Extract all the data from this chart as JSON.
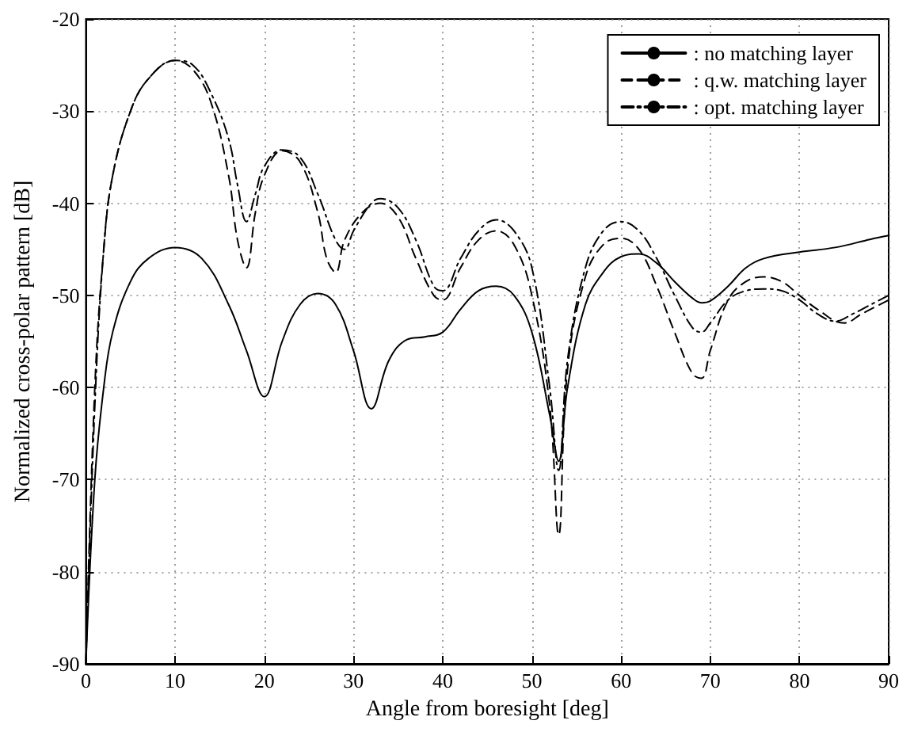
{
  "chart_data": {
    "type": "line",
    "xlabel": "Angle from boresight [deg]",
    "ylabel": "Normalized cross-polar pattern [dB]",
    "xlim": [
      0,
      90
    ],
    "xticks": [
      0,
      10,
      20,
      30,
      40,
      50,
      60,
      70,
      80,
      90
    ],
    "ylim": [
      -90,
      -20
    ],
    "yticks": [
      -90,
      -80,
      -70,
      -60,
      -50,
      -40,
      -30,
      -20
    ],
    "grid": true,
    "legend": "top right",
    "marker": "none",
    "series": [
      {
        "name": ": no matching layer",
        "color": "#000000",
        "line_style": "solid",
        "x": [
          0,
          1,
          2,
          3,
          5,
          7,
          10,
          13,
          16,
          18,
          20,
          22,
          24,
          26,
          28,
          30,
          32,
          34,
          36,
          38,
          40,
          42,
          44,
          46,
          48,
          50,
          52,
          53,
          54,
          56,
          58,
          60,
          62,
          64,
          66,
          68,
          69,
          70,
          72,
          74,
          76,
          80,
          84,
          88,
          90
        ],
        "values": [
          -90,
          -70,
          -60,
          -54,
          -48.5,
          -46,
          -44.8,
          -46,
          -51,
          -56,
          -61,
          -55,
          -51,
          -49.8,
          -51,
          -56,
          -62.3,
          -57,
          -54.8,
          -54.5,
          -54,
          -51.5,
          -49.5,
          -49,
          -50,
          -54,
          -63,
          -68,
          -60,
          -51,
          -47.5,
          -45.8,
          -45.5,
          -46.5,
          -48.5,
          -50.3,
          -50.8,
          -50.6,
          -49,
          -47,
          -46,
          -45.3,
          -44.8,
          -43.9,
          -43.5
        ]
      },
      {
        "name": ": q.w. matching layer",
        "color": "#000000",
        "line_style": "dashed",
        "x": [
          0,
          1,
          2,
          3,
          5,
          7,
          10,
          12,
          14,
          16,
          17,
          18,
          19,
          20,
          22,
          24,
          26,
          27,
          28,
          29,
          31,
          33,
          35,
          37,
          39,
          40,
          42,
          44,
          46,
          48,
          50,
          52,
          53,
          54,
          56,
          58,
          60,
          62,
          64,
          66,
          68,
          69,
          70,
          72,
          74,
          76,
          78,
          80,
          82,
          85,
          87,
          90
        ],
        "values": [
          -90,
          -60,
          -45,
          -37,
          -30,
          -26.5,
          -24.5,
          -25.5,
          -29,
          -37,
          -44,
          -47,
          -41,
          -37,
          -34.3,
          -35.5,
          -41,
          -46,
          -47.5,
          -44,
          -41,
          -40,
          -41.5,
          -46,
          -50,
          -50.5,
          -47,
          -44,
          -43,
          -44.5,
          -50,
          -62,
          -76,
          -58,
          -48,
          -44.5,
          -43.8,
          -45,
          -49,
          -54,
          -58.5,
          -59,
          -56,
          -50.5,
          -48.5,
          -48,
          -48.5,
          -50,
          -51.5,
          -53,
          -52,
          -50.5
        ]
      },
      {
        "name": ": opt. matching layer",
        "color": "#000000",
        "line_style": "dashdot",
        "x": [
          0,
          1,
          2,
          3,
          5,
          7,
          10,
          12,
          14,
          16,
          17,
          18,
          19,
          20,
          22,
          24,
          26,
          28,
          29,
          30,
          32,
          33,
          35,
          37,
          39,
          40,
          42,
          44,
          46,
          48,
          50,
          52,
          53,
          54,
          56,
          58,
          60,
          62,
          64,
          66,
          68,
          69,
          70,
          72,
          74,
          76,
          78,
          80,
          82,
          84,
          86,
          88,
          90
        ],
        "values": [
          -90,
          -62,
          -45,
          -37,
          -30,
          -26.5,
          -24.5,
          -25,
          -28,
          -33,
          -38,
          -42,
          -39,
          -36,
          -34.2,
          -35,
          -39,
          -44,
          -45,
          -43,
          -40,
          -39.5,
          -40.5,
          -44,
          -49,
          -49.5,
          -46,
          -43,
          -41.8,
          -43,
          -47,
          -60,
          -69,
          -57,
          -47,
          -43,
          -42,
          -43,
          -46,
          -50,
          -53.5,
          -54,
          -53,
          -50.5,
          -49.5,
          -49.3,
          -49.5,
          -50.5,
          -52,
          -52.8,
          -52,
          -51,
          -50
        ]
      }
    ]
  }
}
